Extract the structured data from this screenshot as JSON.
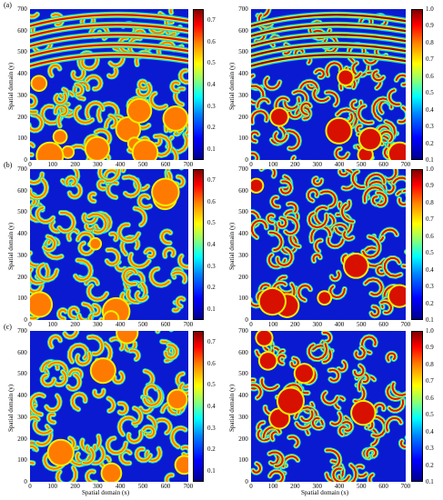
{
  "panel_labels": [
    "(a)",
    "(b)",
    "(c)"
  ],
  "y_axis_label": "Spatial domain (y)",
  "x_axis_label": "Spatial domain (x)",
  "axis_ticks": [
    "0",
    "100",
    "200",
    "300",
    "400",
    "500",
    "600",
    "700"
  ],
  "colorbar_left_ticks": [
    "0.1",
    "0.2",
    "0.3",
    "0.4",
    "0.5",
    "0.6",
    "0.7"
  ],
  "colorbar_right_ticks": [
    "0.1",
    "0.2",
    "0.3",
    "0.4",
    "0.5",
    "0.6",
    "0.7",
    "0.8",
    "0.9",
    "1.0"
  ],
  "colors": {
    "background_blue": "#0a1ad0",
    "cyan": "#00e0ff",
    "yellow": "#f0f000",
    "orange": "#ff7a00",
    "red": "#d81000",
    "dark_red": "#8a0000"
  },
  "chart_data": [
    {
      "type": "heatmap",
      "panel": "(a) left",
      "x_range": [
        0,
        700
      ],
      "y_range": [
        0,
        700
      ],
      "colorbar_range": [
        0.05,
        0.75
      ]
    },
    {
      "type": "heatmap",
      "panel": "(a) right",
      "x_range": [
        0,
        700
      ],
      "y_range": [
        0,
        700
      ],
      "colorbar_range": [
        0.1,
        1.0
      ]
    },
    {
      "type": "heatmap",
      "panel": "(b) left",
      "x_range": [
        0,
        700
      ],
      "y_range": [
        0,
        700
      ],
      "colorbar_range": [
        0.05,
        0.75
      ]
    },
    {
      "type": "heatmap",
      "panel": "(b) right",
      "x_range": [
        0,
        700
      ],
      "y_range": [
        0,
        700
      ],
      "colorbar_range": [
        0.1,
        1.0
      ]
    },
    {
      "type": "heatmap",
      "panel": "(c) left",
      "x_range": [
        0,
        700
      ],
      "y_range": [
        0,
        700
      ],
      "colorbar_range": [
        0.05,
        0.75
      ]
    },
    {
      "type": "heatmap",
      "panel": "(c) right",
      "x_range": [
        0,
        700
      ],
      "y_range": [
        0,
        700
      ],
      "colorbar_range": [
        0.1,
        1.0
      ]
    }
  ]
}
